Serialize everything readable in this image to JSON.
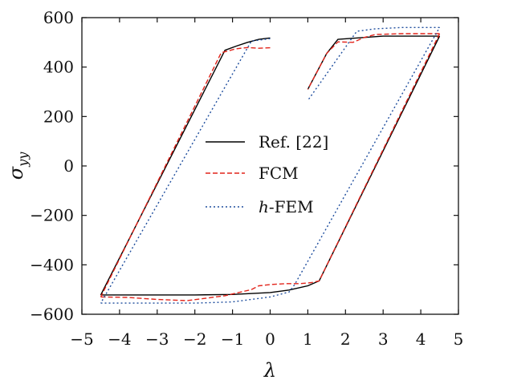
{
  "chart_data": {
    "type": "line",
    "title": "",
    "xlabel": "λ",
    "ylabel_main": "σ",
    "ylabel_sub": "yy",
    "xlim": [
      -5,
      5
    ],
    "ylim": [
      -600,
      600
    ],
    "xticks": [
      -5,
      -4,
      -3,
      -2,
      -1,
      0,
      1,
      2,
      3,
      4,
      5
    ],
    "yticks": [
      -600,
      -400,
      -200,
      0,
      200,
      400,
      600
    ],
    "xtick_labels": [
      "−5",
      "−4",
      "−3",
      "−2",
      "−1",
      "0",
      "1",
      "2",
      "3",
      "4",
      "5"
    ],
    "ytick_labels": [
      "−600",
      "−400",
      "−200",
      "0",
      "200",
      "400",
      "600"
    ],
    "grid": false,
    "legend_position": "center",
    "series": [
      {
        "name": "Ref. [22]",
        "color": "#000000",
        "dash": "solid",
        "segments": [
          [
            [
              0,
              518
            ],
            [
              -0.3,
              512
            ],
            [
              -0.6,
              500
            ],
            [
              -0.9,
              485
            ],
            [
              -1.2,
              468
            ],
            [
              -4.5,
              -522
            ]
          ],
          [
            [
              -4.5,
              -522
            ],
            [
              -3.5,
              -522
            ],
            [
              -2,
              -522
            ],
            [
              -1,
              -520
            ],
            [
              0,
              -512
            ],
            [
              0.5,
              -502
            ],
            [
              1,
              -485
            ],
            [
              1.3,
              -465
            ],
            [
              4.5,
              525
            ]
          ],
          [
            [
              4.5,
              525
            ],
            [
              3,
              525
            ],
            [
              1.8,
              512
            ],
            [
              1.5,
              455
            ],
            [
              1,
              310
            ]
          ]
        ]
      },
      {
        "name": "FCM",
        "color": "#e2231a",
        "dash": "dashed",
        "segments": [
          [
            [
              0,
              478
            ],
            [
              -0.3,
              476
            ],
            [
              -0.6,
              479
            ],
            [
              -0.9,
              474
            ],
            [
              -1.3,
              458
            ],
            [
              -4.5,
              -530
            ]
          ],
          [
            [
              -4.5,
              -530
            ],
            [
              -3.8,
              -532
            ],
            [
              -3,
              -540
            ],
            [
              -2.2,
              -545
            ],
            [
              -1.2,
              -525
            ],
            [
              -0.5,
              -500
            ],
            [
              -0.3,
              -485
            ],
            [
              0,
              -480
            ],
            [
              0.4,
              -476
            ],
            [
              0.8,
              -476
            ],
            [
              1.1,
              -472
            ],
            [
              1.3,
              -465
            ],
            [
              4.5,
              535
            ]
          ],
          [
            [
              4.5,
              535
            ],
            [
              3.5,
              535
            ],
            [
              2.8,
              532
            ],
            [
              2.5,
              520
            ],
            [
              2.2,
              500
            ],
            [
              1.8,
              502
            ],
            [
              1.5,
              455
            ],
            [
              1,
              310
            ]
          ]
        ]
      },
      {
        "name": "h-FEM",
        "color": "#1f4e9e",
        "dash": "dotted",
        "segments": [
          [
            [
              0,
              515
            ],
            [
              -0.5,
              505
            ],
            [
              -4.5,
              -555
            ]
          ],
          [
            [
              -4.5,
              -555
            ],
            [
              -3,
              -555
            ],
            [
              -2,
              -555
            ],
            [
              -1,
              -550
            ],
            [
              0,
              -530
            ],
            [
              0.5,
              -510
            ],
            [
              0.65,
              -480
            ],
            [
              4.5,
              560
            ]
          ],
          [
            [
              4.5,
              560
            ],
            [
              3.5,
              560
            ],
            [
              2.8,
              555
            ],
            [
              2.3,
              545
            ],
            [
              1,
              265
            ]
          ]
        ]
      }
    ]
  },
  "legend": {
    "items": [
      {
        "label": "Ref. [22]"
      },
      {
        "label": "FCM"
      },
      {
        "label_italic": "h",
        "label_rest": "-FEM"
      }
    ]
  }
}
